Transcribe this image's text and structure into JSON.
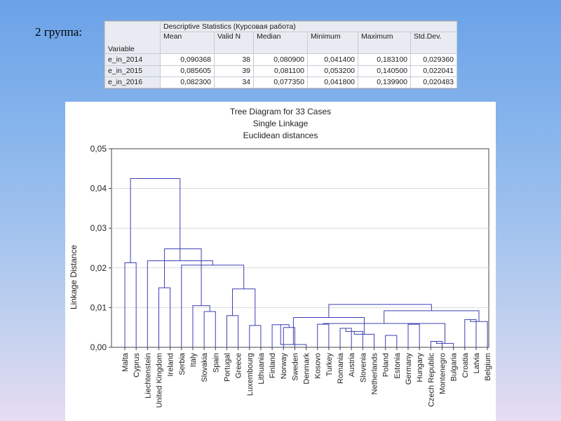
{
  "heading": "2 группа:",
  "stats_table": {
    "title": "Descriptive Statistics (Курсовая работа)",
    "variable_label": "Variable",
    "columns": [
      "Mean",
      "Valid N",
      "Median",
      "Minimum",
      "Maximum",
      "Std.Dev."
    ],
    "rows": [
      {
        "name": "e_in_2014",
        "values": [
          "0,090368",
          "38",
          "0,080900",
          "0,041400",
          "0,183100",
          "0,029360"
        ]
      },
      {
        "name": "e_in_2015",
        "values": [
          "0,085605",
          "39",
          "0,081100",
          "0,053200",
          "0,140500",
          "0,022041"
        ]
      },
      {
        "name": "e_in_2016",
        "values": [
          "0,082300",
          "34",
          "0,077350",
          "0,041800",
          "0,139900",
          "0,020483"
        ]
      }
    ]
  },
  "chart_data": {
    "type": "dendrogram",
    "title": "Tree Diagram for 33 Cases",
    "subtitle_1": "Single Linkage",
    "subtitle_2": "Euclidean distances",
    "ylabel": "Linkage Distance",
    "ylim": [
      0,
      0.05
    ],
    "y_ticks": [
      "0,00",
      "0,01",
      "0,02",
      "0,03",
      "0,04",
      "0,05"
    ],
    "grid": true,
    "leaves": [
      "Malta",
      "Cyprus",
      "Liechtenstein",
      "United Kingdom",
      "Ireland",
      "Serbia",
      "Italy",
      "Slovakia",
      "Spain",
      "Portugal",
      "Greece",
      "Luxembourg",
      "Lithuania",
      "Finland",
      "Norway",
      "Sweden",
      "Denmark",
      "Kosovo",
      "Turkey",
      "Romania",
      "Austria",
      "Slovenia",
      "Netherlands",
      "Poland",
      "Estonia",
      "Germany",
      "Hungary",
      "Czech Republic",
      "Montenegro",
      "Bulgaria",
      "Croatia",
      "Latvia",
      "Belgium"
    ],
    "merges": [
      {
        "a": "Malta",
        "b": "Cyprus",
        "height": 0.0213
      },
      {
        "a": "United Kingdom",
        "b": "Ireland",
        "height": 0.015
      },
      {
        "a": "Spain",
        "b": "Slovakia",
        "height": 0.009
      },
      {
        "a": "Portugal",
        "b": "Greece",
        "height": 0.008
      },
      {
        "a": "Lithuania",
        "b": "Luxembourg",
        "height": 0.0055
      },
      {
        "a": "Norway",
        "b": "Sweden",
        "height": 0.005
      },
      {
        "a": "Finland",
        "b": "Norway",
        "height": 0.0057
      },
      {
        "a": "Sweden",
        "b": "Denmark",
        "height": 0.0007
      },
      {
        "a": "Kosovo",
        "b": "Turkey",
        "height": 0.0058
      },
      {
        "a": "Romania",
        "b": "Austria",
        "height": 0.0048
      },
      {
        "a": "Austria",
        "b": "Slovenia",
        "height": 0.004
      },
      {
        "a": "Slovenia",
        "b": "Netherlands",
        "height": 0.0033
      },
      {
        "a": "Poland",
        "b": "Estonia",
        "height": 0.003
      },
      {
        "a": "Germany",
        "b": "Hungary",
        "height": 0.0058
      },
      {
        "a": "Czech Republic",
        "b": "Montenegro",
        "height": 0.0015
      },
      {
        "a": "Montenegro",
        "b": "Bulgaria",
        "height": 0.001
      },
      {
        "a": "Croatia",
        "b": "Latvia",
        "height": 0.007
      },
      {
        "a": "Latvia",
        "b": "Belgium",
        "height": 0.0065
      },
      {
        "a": "Italy",
        "b": "Spain",
        "height": 0.0105
      },
      {
        "a": "Kosovo",
        "b": "Montenegro",
        "height": 0.006
      },
      {
        "a": "Finland",
        "b": "Netherlands",
        "height": 0.0075
      },
      {
        "a": "Croatia",
        "b": "Bulgaria",
        "height": 0.0092
      },
      {
        "a": "Finland",
        "b": "Croatia",
        "height": 0.0108
      },
      {
        "a": "Greece",
        "b": "Lithuania",
        "height": 0.0147
      },
      {
        "a": "Serbia",
        "b": "Lithuania",
        "height": 0.0207
      },
      {
        "a": "Liechtenstein",
        "b": "Serbia",
        "height": 0.0218
      },
      {
        "a": "Ireland",
        "b": "Italy",
        "height": 0.0248
      },
      {
        "a": "Cyprus",
        "b": "Serbia",
        "height": 0.0425
      }
    ]
  },
  "colors": {
    "line": "#3b3fb5",
    "grid": "#d9d9d9",
    "axis": "#444444"
  }
}
